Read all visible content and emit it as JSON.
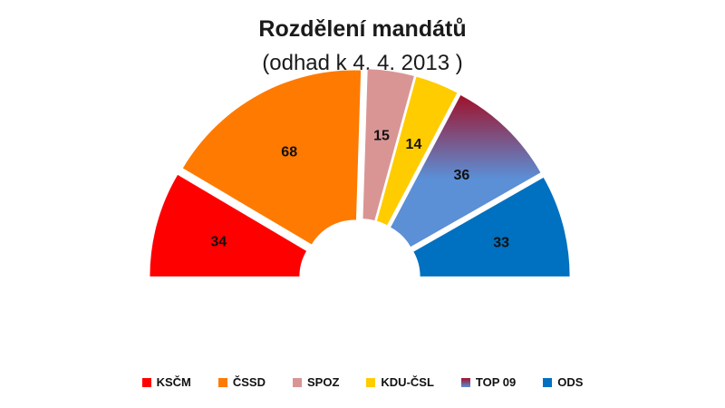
{
  "chart_data": {
    "type": "pie",
    "variant": "parliament-semicircle",
    "title": "Rozdělení mandátů",
    "subtitle": "(odhad k 4. 4. 2013 )",
    "total": 200,
    "series": [
      {
        "name": "KSČM",
        "value": 34,
        "color": "#ff0000"
      },
      {
        "name": "ČSSD",
        "value": 68,
        "color": "#ff7a00"
      },
      {
        "name": "SPOZ",
        "value": 15,
        "color": "#d99594"
      },
      {
        "name": "KDU-ČSL",
        "value": 14,
        "color": "#ffcc00"
      },
      {
        "name": "TOP 09",
        "value": 36,
        "color": "#5b8fd6",
        "color_top": "#a0112a"
      },
      {
        "name": "ODS",
        "value": 33,
        "color": "#0070c0"
      }
    ],
    "legend_position": "bottom"
  }
}
